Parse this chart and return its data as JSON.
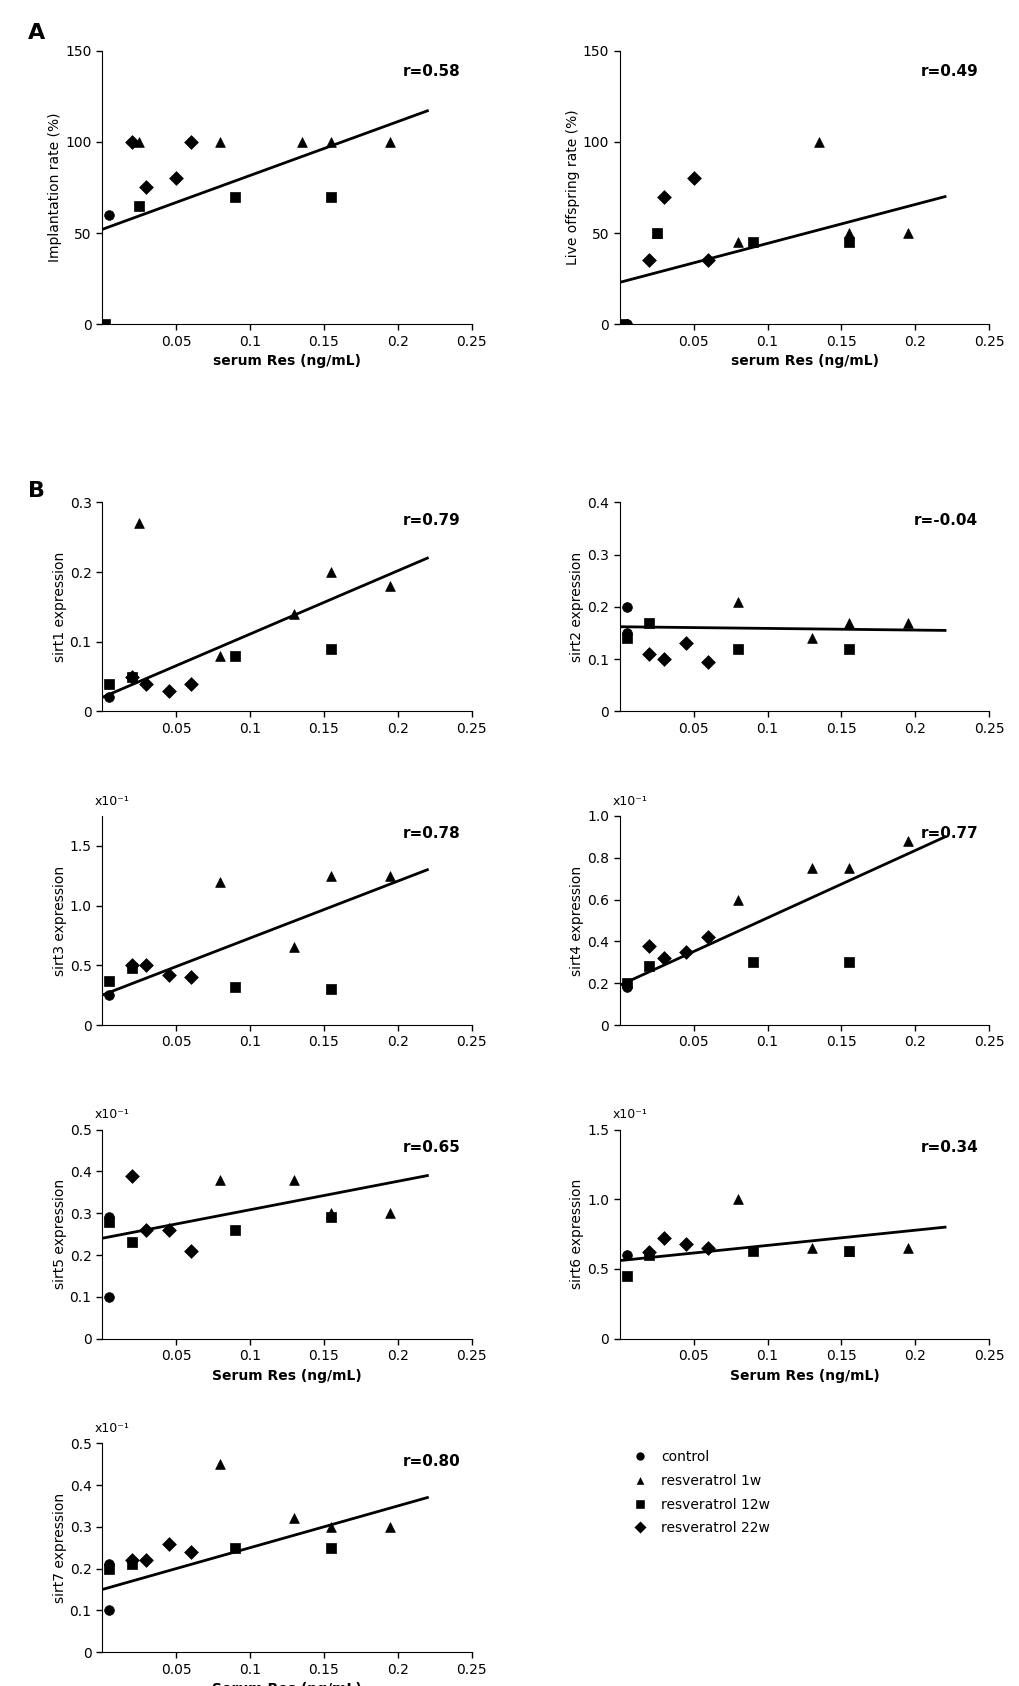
{
  "panel_A": {
    "implantation": {
      "r": "r=0.58",
      "ylabel": "Implantation rate (%)",
      "xlabel": "serum Res (ng/mL)",
      "xlim": [
        0,
        0.25
      ],
      "ylim": [
        0,
        150
      ],
      "xticks": [
        0.05,
        0.1,
        0.15,
        0.2,
        0.25
      ],
      "yticks": [
        0,
        50,
        100,
        150
      ],
      "scale": null,
      "control": {
        "x": [
          0.005
        ],
        "y": [
          60
        ]
      },
      "res1w": {
        "x": [
          0.025,
          0.08,
          0.135,
          0.155,
          0.195
        ],
        "y": [
          100,
          100,
          100,
          100,
          100
        ]
      },
      "res12w": {
        "x": [
          0.002,
          0.025,
          0.09,
          0.155
        ],
        "y": [
          0,
          65,
          70,
          70
        ]
      },
      "res22w": {
        "x": [
          0.02,
          0.03,
          0.05,
          0.06
        ],
        "y": [
          100,
          75,
          80,
          100
        ]
      },
      "line": {
        "x0": 0.0,
        "x1": 0.22,
        "y0": 52,
        "y1": 117
      }
    },
    "live_offspring": {
      "r": "r=0.49",
      "ylabel": "Live offspring rate (%)",
      "xlabel": "serum Res (ng/mL)",
      "xlim": [
        0,
        0.25
      ],
      "ylim": [
        0,
        150
      ],
      "xticks": [
        0.05,
        0.1,
        0.15,
        0.2,
        0.25
      ],
      "yticks": [
        0,
        50,
        100,
        150
      ],
      "scale": null,
      "control": {
        "x": [
          0.005
        ],
        "y": [
          0
        ]
      },
      "res1w": {
        "x": [
          0.025,
          0.08,
          0.135,
          0.155,
          0.195
        ],
        "y": [
          50,
          45,
          100,
          50,
          50
        ]
      },
      "res12w": {
        "x": [
          0.002,
          0.025,
          0.09,
          0.155
        ],
        "y": [
          0,
          50,
          45,
          45
        ]
      },
      "res22w": {
        "x": [
          0.02,
          0.03,
          0.05,
          0.06
        ],
        "y": [
          35,
          70,
          80,
          35
        ]
      },
      "line": {
        "x0": 0.0,
        "x1": 0.22,
        "y0": 23,
        "y1": 70
      }
    }
  },
  "panel_B": {
    "sirt1": {
      "r": "r=0.79",
      "ylabel": "sirt1 expression",
      "xlim": [
        0,
        0.25
      ],
      "ylim": [
        0,
        0.3
      ],
      "xticks": [
        0.05,
        0.1,
        0.15,
        0.2,
        0.25
      ],
      "yticks": [
        0,
        0.1,
        0.2,
        0.3
      ],
      "yticklabels": [
        "0",
        "0.1",
        "0.2",
        "0.3"
      ],
      "scale": null,
      "control": {
        "x": [
          0.005
        ],
        "y": [
          0.02
        ]
      },
      "res1w": {
        "x": [
          0.025,
          0.08,
          0.13,
          0.155,
          0.195
        ],
        "y": [
          0.27,
          0.08,
          0.14,
          0.2,
          0.18
        ]
      },
      "res12w": {
        "x": [
          0.005,
          0.02,
          0.09,
          0.155
        ],
        "y": [
          0.04,
          0.05,
          0.08,
          0.09
        ]
      },
      "res22w": {
        "x": [
          0.02,
          0.03,
          0.045,
          0.06
        ],
        "y": [
          0.05,
          0.04,
          0.03,
          0.04
        ]
      },
      "line": {
        "x0": 0.0,
        "x1": 0.22,
        "y0": 0.02,
        "y1": 0.22
      }
    },
    "sirt2": {
      "r": "r=-0.04",
      "ylabel": "sirt2 expression",
      "xlim": [
        0,
        0.25
      ],
      "ylim": [
        0,
        0.4
      ],
      "xticks": [
        0.05,
        0.1,
        0.15,
        0.2,
        0.25
      ],
      "yticks": [
        0,
        0.1,
        0.2,
        0.3,
        0.4
      ],
      "yticklabels": [
        "0",
        "0.1",
        "0.2",
        "0.3",
        "0.4"
      ],
      "scale": null,
      "control": {
        "x": [
          0.005,
          0.005
        ],
        "y": [
          0.2,
          0.15
        ]
      },
      "res1w": {
        "x": [
          0.08,
          0.13,
          0.155,
          0.195
        ],
        "y": [
          0.21,
          0.14,
          0.17,
          0.17
        ]
      },
      "res12w": {
        "x": [
          0.005,
          0.02,
          0.08,
          0.155
        ],
        "y": [
          0.14,
          0.17,
          0.12,
          0.12
        ]
      },
      "res22w": {
        "x": [
          0.02,
          0.03,
          0.045,
          0.06
        ],
        "y": [
          0.11,
          0.1,
          0.13,
          0.095
        ]
      },
      "line": {
        "x0": 0.0,
        "x1": 0.22,
        "y0": 0.162,
        "y1": 0.155
      }
    },
    "sirt3": {
      "r": "r=0.78",
      "ylabel": "sirt3 expression",
      "xlim": [
        0,
        0.25
      ],
      "ylim": [
        0,
        1.75
      ],
      "xticks": [
        0.05,
        0.1,
        0.15,
        0.2,
        0.25
      ],
      "yticks": [
        0,
        0.5,
        1.0,
        1.5
      ],
      "yticklabels": [
        "0",
        "0.5",
        "1.0",
        "1.5"
      ],
      "scale": "x10⁻¹",
      "control": {
        "x": [
          0.005
        ],
        "y": [
          0.25
        ]
      },
      "res1w": {
        "x": [
          0.08,
          0.13,
          0.155,
          0.195
        ],
        "y": [
          1.2,
          0.65,
          1.25,
          1.25
        ]
      },
      "res12w": {
        "x": [
          0.005,
          0.02,
          0.09,
          0.155
        ],
        "y": [
          0.37,
          0.48,
          0.32,
          0.3
        ]
      },
      "res22w": {
        "x": [
          0.02,
          0.03,
          0.045,
          0.06
        ],
        "y": [
          0.5,
          0.5,
          0.42,
          0.4
        ]
      },
      "line": {
        "x0": 0.0,
        "x1": 0.22,
        "y0": 0.25,
        "y1": 1.3
      }
    },
    "sirt4": {
      "r": "r=0.77",
      "ylabel": "sirt4 expression",
      "xlim": [
        0,
        0.25
      ],
      "ylim": [
        0,
        1.0
      ],
      "xticks": [
        0.05,
        0.1,
        0.15,
        0.2,
        0.25
      ],
      "yticks": [
        0,
        0.2,
        0.4,
        0.6,
        0.8,
        1.0
      ],
      "yticklabels": [
        "0",
        "0.2",
        "0.4",
        "0.6",
        "0.8",
        "1.0"
      ],
      "scale": "x10⁻¹",
      "control": {
        "x": [
          0.005
        ],
        "y": [
          0.18
        ]
      },
      "res1w": {
        "x": [
          0.08,
          0.13,
          0.155,
          0.195
        ],
        "y": [
          0.6,
          0.75,
          0.75,
          0.88
        ]
      },
      "res12w": {
        "x": [
          0.005,
          0.02,
          0.09,
          0.155
        ],
        "y": [
          0.2,
          0.28,
          0.3,
          0.3
        ]
      },
      "res22w": {
        "x": [
          0.02,
          0.03,
          0.045,
          0.06
        ],
        "y": [
          0.38,
          0.32,
          0.35,
          0.42
        ]
      },
      "line": {
        "x0": 0.0,
        "x1": 0.22,
        "y0": 0.19,
        "y1": 0.9
      }
    },
    "sirt5": {
      "r": "r=0.65",
      "ylabel": "sirt5 expression",
      "xlim": [
        0,
        0.25
      ],
      "ylim": [
        0,
        0.5
      ],
      "xticks": [
        0.05,
        0.1,
        0.15,
        0.2,
        0.25
      ],
      "yticks": [
        0,
        0.1,
        0.2,
        0.3,
        0.4,
        0.5
      ],
      "yticklabels": [
        "0",
        "0.1",
        "0.2",
        "0.3",
        "0.4",
        "0.5"
      ],
      "scale": "x10⁻¹",
      "control": {
        "x": [
          0.005,
          0.005
        ],
        "y": [
          0.29,
          0.1
        ]
      },
      "res1w": {
        "x": [
          0.08,
          0.13,
          0.155,
          0.195
        ],
        "y": [
          0.38,
          0.38,
          0.3,
          0.3
        ]
      },
      "res12w": {
        "x": [
          0.005,
          0.02,
          0.09,
          0.155
        ],
        "y": [
          0.28,
          0.23,
          0.26,
          0.29
        ]
      },
      "res22w": {
        "x": [
          0.02,
          0.03,
          0.045,
          0.06
        ],
        "y": [
          0.39,
          0.26,
          0.26,
          0.21
        ]
      },
      "line": {
        "x0": 0.0,
        "x1": 0.22,
        "y0": 0.24,
        "y1": 0.39
      }
    },
    "sirt6": {
      "r": "r=0.34",
      "ylabel": "sirt6 expression",
      "xlim": [
        0,
        0.25
      ],
      "ylim": [
        0,
        1.5
      ],
      "xticks": [
        0.05,
        0.1,
        0.15,
        0.2,
        0.25
      ],
      "yticks": [
        0,
        0.5,
        1.0,
        1.5
      ],
      "yticklabels": [
        "0",
        "0.5",
        "1.0",
        "1.5"
      ],
      "scale": "x10⁻¹",
      "control": {
        "x": [
          0.005
        ],
        "y": [
          0.6
        ]
      },
      "res1w": {
        "x": [
          0.08,
          0.13,
          0.155,
          0.195
        ],
        "y": [
          1.0,
          0.65,
          0.63,
          0.65
        ]
      },
      "res12w": {
        "x": [
          0.005,
          0.02,
          0.09,
          0.155
        ],
        "y": [
          0.45,
          0.6,
          0.63,
          0.63
        ]
      },
      "res22w": {
        "x": [
          0.02,
          0.03,
          0.045,
          0.06
        ],
        "y": [
          0.62,
          0.72,
          0.68,
          0.65
        ]
      },
      "line": {
        "x0": 0.0,
        "x1": 0.22,
        "y0": 0.56,
        "y1": 0.8
      }
    },
    "sirt7": {
      "r": "r=0.80",
      "ylabel": "sirt7 expression",
      "xlim": [
        0,
        0.25
      ],
      "ylim": [
        0,
        0.5
      ],
      "xticks": [
        0.05,
        0.1,
        0.15,
        0.2,
        0.25
      ],
      "yticks": [
        0,
        0.1,
        0.2,
        0.3,
        0.4,
        0.5
      ],
      "yticklabels": [
        "0",
        "0.1",
        "0.2",
        "0.3",
        "0.4",
        "0.5"
      ],
      "scale": "x10⁻¹",
      "control": {
        "x": [
          0.005,
          0.005
        ],
        "y": [
          0.21,
          0.1
        ]
      },
      "res1w": {
        "x": [
          0.08,
          0.13,
          0.155,
          0.195
        ],
        "y": [
          0.45,
          0.32,
          0.3,
          0.3
        ]
      },
      "res12w": {
        "x": [
          0.005,
          0.02,
          0.09,
          0.155
        ],
        "y": [
          0.2,
          0.21,
          0.25,
          0.25
        ]
      },
      "res22w": {
        "x": [
          0.02,
          0.03,
          0.045,
          0.06
        ],
        "y": [
          0.22,
          0.22,
          0.26,
          0.24
        ]
      },
      "line": {
        "x0": 0.0,
        "x1": 0.22,
        "y0": 0.15,
        "y1": 0.37
      }
    }
  },
  "legend": {
    "control": "control",
    "res1w": "resveratrol 1w",
    "res12w": "resveratrol 12w",
    "res22w": "resveratrol 22w"
  },
  "marker_size": 7,
  "fontsize": 10,
  "label_fontsize": 10,
  "r_fontsize": 11
}
